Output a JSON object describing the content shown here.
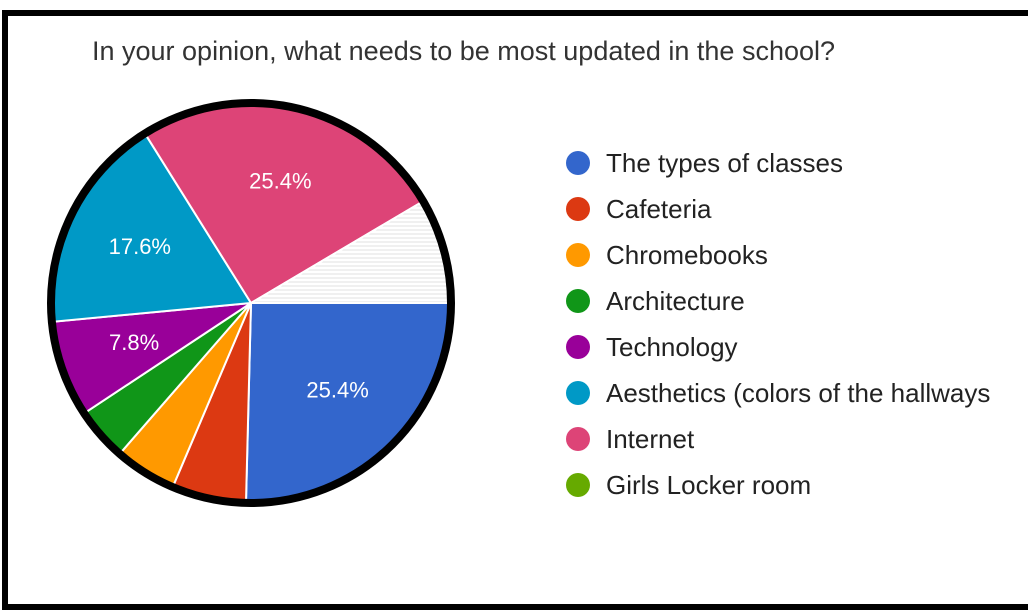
{
  "chart_data": {
    "type": "pie",
    "title": "In your opinion, what needs to be most updated in the school?",
    "slices": [
      {
        "label": "The types of classes",
        "value": 25.4,
        "color": "#3366cc",
        "data_label": "25.4%"
      },
      {
        "label": "Cafeteria",
        "value": 6.0,
        "color": "#dc3912",
        "data_label": ""
      },
      {
        "label": "Chromebooks",
        "value": 5.0,
        "color": "#ff9900",
        "data_label": ""
      },
      {
        "label": "Architecture",
        "value": 4.3,
        "color": "#109618",
        "data_label": ""
      },
      {
        "label": "Technology",
        "value": 7.8,
        "color": "#990099",
        "data_label": "7.8%"
      },
      {
        "label": "Aesthetics (colors of the hallways",
        "value": 17.6,
        "color": "#0099c6",
        "data_label": "17.6%"
      },
      {
        "label": "Internet",
        "value": 25.4,
        "color": "#dd4477",
        "data_label": "25.4%"
      },
      {
        "label": "Girls Locker room",
        "value": 8.5,
        "color": "#66aa00",
        "data_label": ""
      }
    ],
    "legend_position": "right"
  }
}
